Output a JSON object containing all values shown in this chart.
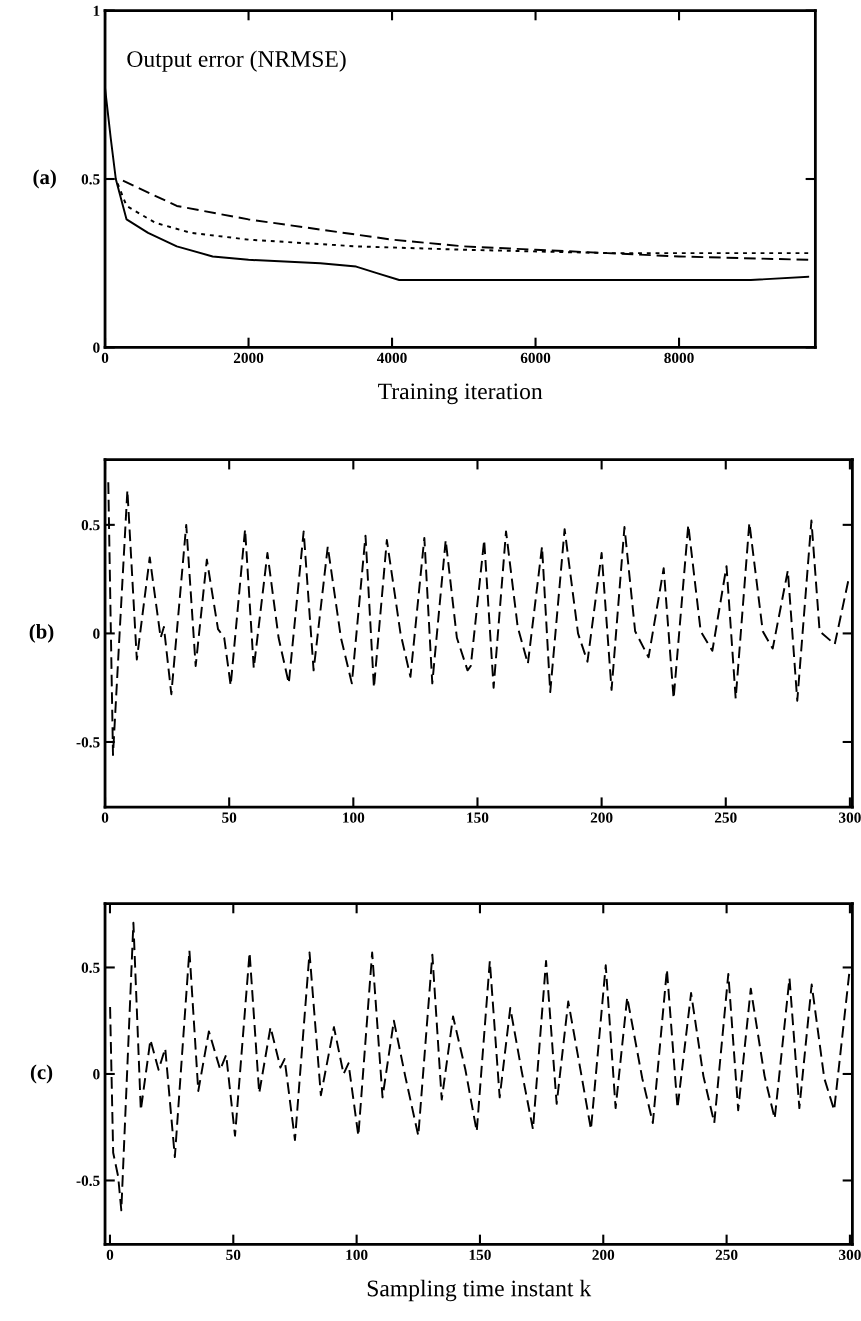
{
  "chart_data": [
    {
      "type": "line",
      "title": "Output error (NRMSE)",
      "xlabel": "Training iteration",
      "annotations": [
        "(a)"
      ],
      "xlim": [
        0,
        9900
      ],
      "ylim": [
        0,
        1
      ],
      "xticks": [
        0,
        2000,
        4000,
        6000,
        8000
      ],
      "yticks": [
        0,
        0.5,
        1
      ],
      "series": [
        {
          "color": "#000000",
          "line_style": "solid",
          "x": [
            0,
            80,
            150,
            300,
            600,
            1000,
            1500,
            2000,
            3000,
            3500,
            3800,
            4100,
            5000,
            6000,
            7000,
            8000,
            9000,
            9800
          ],
          "values": [
            0.77,
            0.62,
            0.5,
            0.38,
            0.34,
            0.3,
            0.27,
            0.26,
            0.25,
            0.24,
            0.22,
            0.2,
            0.2,
            0.2,
            0.2,
            0.2,
            0.2,
            0.21
          ]
        },
        {
          "color": "#000000",
          "line_style": "dotted",
          "x": [
            150,
            300,
            700,
            1200,
            2000,
            3500,
            5000,
            7000,
            9800
          ],
          "values": [
            0.5,
            0.42,
            0.37,
            0.34,
            0.32,
            0.3,
            0.29,
            0.28,
            0.28
          ]
        },
        {
          "color": "#000000",
          "line_style": "dashed",
          "x": [
            200,
            500,
            1000,
            2000,
            3000,
            4000,
            5000,
            6000,
            7000,
            8000,
            9800
          ],
          "values": [
            0.5,
            0.47,
            0.42,
            0.38,
            0.35,
            0.32,
            0.3,
            0.29,
            0.28,
            0.27,
            0.26
          ]
        }
      ]
    },
    {
      "type": "line",
      "annotations": [
        "(b)"
      ],
      "xlim": [
        0,
        301
      ],
      "ylim": [
        -0.8,
        0.8
      ],
      "xticks": [
        0,
        50,
        100,
        150,
        200,
        250,
        300
      ],
      "yticks": [
        -0.5,
        0,
        0.5
      ],
      "series": [
        {
          "color": "#000000",
          "line_style": "dashed",
          "x": [
            1.3,
            3.2,
            9,
            12.8,
            18,
            22.4,
            23.7,
            26.7,
            32.7,
            36.5,
            41,
            45.5,
            48,
            50.6,
            56.4,
            59.9,
            65.4,
            69.9,
            74,
            80,
            84,
            89.7,
            95,
            99.4,
            104.9,
            108.3,
            113.5,
            119,
            123,
            128.6,
            131.8,
            137.2,
            141.7,
            146,
            147.3,
            152.7,
            156.5,
            161.5,
            166.2,
            170.3,
            176,
            179.3,
            185.1,
            190.5,
            194.3,
            200,
            204,
            209.2,
            213.5,
            218.9,
            225,
            229,
            234.9,
            239.9,
            244.6,
            250.3,
            254,
            259.5,
            264.9,
            268.9,
            275,
            278.8,
            284.5,
            287.8,
            293.9,
            299.3
          ],
          "values": [
            0.7,
            -0.56,
            0.66,
            -0.12,
            0.35,
            -0.02,
            0.03,
            -0.28,
            0.5,
            -0.15,
            0.34,
            0.02,
            -0.02,
            -0.24,
            0.48,
            -0.16,
            0.37,
            -0.02,
            -0.23,
            0.47,
            -0.17,
            0.4,
            -0.02,
            -0.23,
            0.45,
            -0.25,
            0.43,
            0,
            -0.2,
            0.44,
            -0.23,
            0.43,
            -0.02,
            -0.17,
            -0.15,
            0.43,
            -0.25,
            0.47,
            0.03,
            -0.14,
            0.4,
            -0.27,
            0.48,
            0,
            -0.13,
            0.37,
            -0.26,
            0.49,
            0.01,
            -0.11,
            0.3,
            -0.3,
            0.5,
            0.01,
            -0.08,
            0.31,
            -0.3,
            0.51,
            0.01,
            -0.07,
            0.29,
            -0.31,
            0.52,
            0.01,
            -0.05,
            0.24
          ]
        }
      ]
    },
    {
      "type": "line",
      "xlabel": "Sampling time instant k",
      "annotations": [
        "(c)"
      ],
      "xlim": [
        -2,
        301
      ],
      "ylim": [
        -0.8,
        0.8
      ],
      "xticks": [
        0,
        50,
        100,
        150,
        200,
        250,
        300
      ],
      "yticks": [
        -0.5,
        0,
        0.5
      ],
      "series": [
        {
          "color": "#000000",
          "line_style": "dashed",
          "x": [
            0,
            1.3,
            3.3,
            4.6,
            9.5,
            12.5,
            16.4,
            19.7,
            22.4,
            26.3,
            32.2,
            35.8,
            40.1,
            44.7,
            47.1,
            50.7,
            56.6,
            60.5,
            65.1,
            69.1,
            70.8,
            75,
            80.9,
            85.5,
            90.8,
            94.7,
            96.7,
            100.7,
            106.3,
            110.5,
            115.1,
            119.7,
            125,
            130.7,
            134.5,
            139.1,
            144.1,
            148.7,
            154,
            158,
            162.3,
            166.8,
            171.5,
            176.8,
            181.1,
            185.8,
            190.9,
            195,
            201,
            205,
            209.7,
            215.8,
            220.1,
            225.8,
            230.1,
            235.6,
            240.6,
            245,
            250.7,
            254.7,
            259.8,
            265.4,
            269.5,
            275.5,
            279.5,
            284.5,
            289.6,
            293.6,
            299.7
          ],
          "values": [
            0.34,
            -0.37,
            -0.48,
            -0.64,
            0.71,
            -0.17,
            0.16,
            0.02,
            0.12,
            -0.39,
            0.58,
            -0.08,
            0.2,
            0.02,
            0.09,
            -0.29,
            0.57,
            -0.09,
            0.22,
            0.03,
            0.07,
            -0.31,
            0.57,
            -0.1,
            0.22,
            0,
            0.05,
            -0.29,
            0.57,
            -0.11,
            0.25,
            -0.01,
            -0.29,
            0.56,
            -0.12,
            0.27,
            0.02,
            -0.27,
            0.53,
            -0.11,
            0.31,
            0.02,
            -0.26,
            0.53,
            -0.14,
            0.34,
            0.01,
            -0.26,
            0.51,
            -0.16,
            0.36,
            -0.02,
            -0.23,
            0.49,
            -0.16,
            0.38,
            -0.01,
            -0.23,
            0.47,
            -0.17,
            0.4,
            -0.01,
            -0.21,
            0.45,
            -0.16,
            0.42,
            -0.02,
            -0.17,
            0.47
          ]
        }
      ]
    }
  ]
}
